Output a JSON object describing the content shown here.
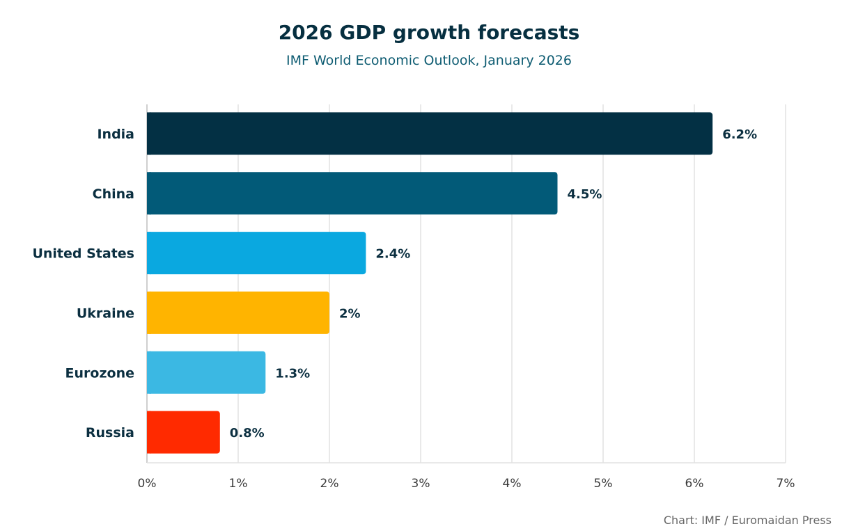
{
  "chart_data": {
    "type": "bar",
    "orientation": "horizontal",
    "title": "2026 GDP growth forecasts",
    "subtitle": "IMF World Economic Outlook, January 2026",
    "credit": "Chart: IMF / Euromaidan Press",
    "categories": [
      "India",
      "China",
      "United States",
      "Ukraine",
      "Eurozone",
      "Russia"
    ],
    "values": [
      6.2,
      4.5,
      2.4,
      2,
      1.3,
      0.8
    ],
    "value_labels": [
      "6.2%",
      "4.5%",
      "2.4%",
      "2%",
      "1.3%",
      "0.8%"
    ],
    "colors": [
      "#033044",
      "#025a78",
      "#0aa8e0",
      "#ffb400",
      "#3bb8e3",
      "#ff2a00"
    ],
    "xlim": [
      0,
      7
    ],
    "xticks": [
      0,
      1,
      2,
      3,
      4,
      5,
      6,
      7
    ],
    "xtick_labels": [
      "0%",
      "1%",
      "2%",
      "3%",
      "4%",
      "5%",
      "6%",
      "7%"
    ],
    "xlabel": "",
    "ylabel": "",
    "grid": "vertical",
    "legend": "none"
  }
}
